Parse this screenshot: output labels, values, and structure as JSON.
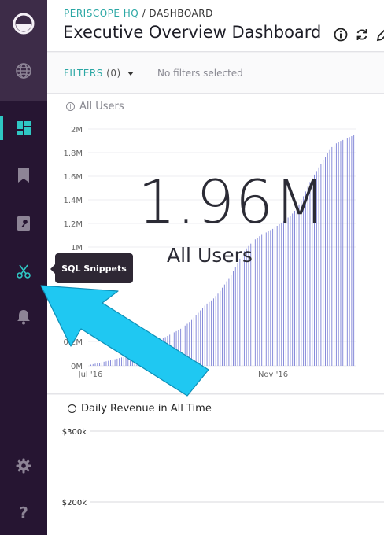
{
  "sidebar": {
    "items": [
      {
        "icon": "logo-icon"
      },
      {
        "icon": "globe-icon"
      },
      {
        "icon": "dashboard-icon",
        "active": true
      },
      {
        "icon": "bookmark-icon"
      },
      {
        "icon": "views-icon"
      },
      {
        "icon": "sql-snippets-icon"
      },
      {
        "icon": "bell-icon"
      },
      {
        "icon": "gear-icon"
      },
      {
        "icon": "help-icon",
        "label": "?"
      }
    ],
    "tooltip": "SQL Snippets",
    "accent": "#2fc7c4"
  },
  "header": {
    "org": "PERISCOPE HQ",
    "separator": " / ",
    "section": "DASHBOARD",
    "title": "Executive Overview Dashboard"
  },
  "filters": {
    "label": "FILTERS",
    "count": "(0)",
    "empty_text": "No filters selected"
  },
  "cards": [
    {
      "title": "All Users",
      "big_number": "1.96M",
      "big_label": "All Users"
    },
    {
      "title": "Daily Revenue in All Time"
    }
  ],
  "chart_data": [
    {
      "type": "bar",
      "title": "All Users",
      "y_ticks": [
        "2M",
        "1.8M",
        "1.6M",
        "1.4M",
        "1.2M",
        "1M",
        "0.2M",
        "0M"
      ],
      "y_tick_values": [
        2.0,
        1.8,
        1.6,
        1.4,
        1.2,
        1.0,
        0.2,
        0.0
      ],
      "x_ticks": [
        "Jul '16",
        "Nov '16"
      ],
      "ylim": [
        0,
        2.0
      ],
      "bar_color": "#7b80d6",
      "points": [
        [
          0,
          0.01
        ],
        [
          10,
          0.03
        ],
        [
          20,
          0.05
        ],
        [
          28,
          0.07
        ],
        [
          36,
          0.1
        ],
        [
          44,
          0.13
        ],
        [
          52,
          0.16
        ],
        [
          60,
          0.2
        ],
        [
          68,
          0.24
        ],
        [
          76,
          0.28
        ],
        [
          84,
          0.32
        ],
        [
          92,
          0.38
        ],
        [
          100,
          0.46
        ],
        [
          106,
          0.52
        ],
        [
          112,
          0.56
        ],
        [
          118,
          0.62
        ],
        [
          124,
          0.7
        ],
        [
          130,
          0.78
        ],
        [
          134,
          0.85
        ],
        [
          138,
          0.92
        ],
        [
          142,
          0.98
        ],
        [
          146,
          1.02
        ],
        [
          150,
          1.06
        ],
        [
          156,
          1.1
        ],
        [
          162,
          1.13
        ],
        [
          168,
          1.16
        ],
        [
          174,
          1.2
        ],
        [
          180,
          1.24
        ],
        [
          186,
          1.29
        ],
        [
          190,
          1.34
        ],
        [
          194,
          1.4
        ],
        [
          198,
          1.48
        ],
        [
          202,
          1.56
        ],
        [
          206,
          1.62
        ],
        [
          210,
          1.68
        ],
        [
          214,
          1.74
        ],
        [
          218,
          1.8
        ],
        [
          222,
          1.85
        ],
        [
          226,
          1.88
        ],
        [
          230,
          1.9
        ],
        [
          235,
          1.92
        ],
        [
          240,
          1.94
        ],
        [
          244,
          1.96
        ]
      ],
      "x_domain": [
        0,
        244
      ],
      "x_tick_positions": [
        0,
        168
      ],
      "bar_count": 122
    },
    {
      "type": "line",
      "title": "Daily Revenue in All Time",
      "y_ticks": [
        "$300k",
        "$200k"
      ],
      "y_tick_values": [
        300000,
        200000
      ]
    }
  ]
}
